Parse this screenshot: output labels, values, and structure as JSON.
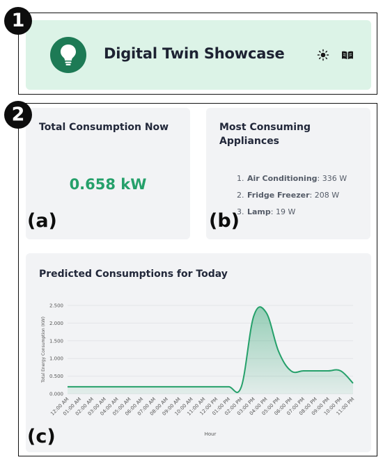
{
  "markers": {
    "header": "1",
    "content": "2"
  },
  "header": {
    "title": "Digital Twin Showcase",
    "logo_icon": "lightbulb-icon",
    "theme_icon": "sun-icon",
    "docs_icon": "book-icon"
  },
  "colors": {
    "accent": "#25a06a",
    "header_bg": "#dcf3e7",
    "logo_bg": "#1d7a55",
    "card_bg": "#f2f3f5"
  },
  "total_consumption": {
    "title": "Total Consumption Now",
    "value": "0.658 kW",
    "label": "(a)"
  },
  "appliances": {
    "title": "Most Consuming Appliances",
    "label": "(b)",
    "items": [
      {
        "num": "1.",
        "name": "Air Conditioning",
        "value": ": 336 W"
      },
      {
        "num": "2.",
        "name": "Fridge Freezer",
        "value": ": 208 W"
      },
      {
        "num": "3.",
        "name": "Lamp",
        "value": ": 19 W"
      }
    ]
  },
  "prediction": {
    "title": "Predicted Consumptions for Today",
    "label": "(c)"
  },
  "chart_data": {
    "type": "area",
    "xlabel": "Hour",
    "ylabel": "Total Energy Consumption (KW)",
    "ylim": [
      0,
      2.5
    ],
    "yticks": [
      "0.000",
      "0.500",
      "1.000",
      "1.500",
      "2.000",
      "2.500"
    ],
    "categories": [
      "12:00 AM",
      "01:00 AM",
      "02:00 AM",
      "03:00 AM",
      "04:00 AM",
      "05:00 AM",
      "06:00 AM",
      "07:00 AM",
      "08:00 AM",
      "09:00 AM",
      "10:00 AM",
      "11:00 AM",
      "12:00 PM",
      "01:00 PM",
      "02:00 PM",
      "03:00 PM",
      "04:00 PM",
      "05:00 PM",
      "06:00 PM",
      "07:00 PM",
      "08:00 PM",
      "09:00 PM",
      "10:00 PM",
      "11:00 PM"
    ],
    "series": [
      {
        "values": [
          0.2,
          0.2,
          0.2,
          0.2,
          0.2,
          0.2,
          0.2,
          0.2,
          0.2,
          0.2,
          0.2,
          0.2,
          0.2,
          0.2,
          0.2,
          2.2,
          2.3,
          1.2,
          0.65,
          0.65,
          0.65,
          0.65,
          0.65,
          0.3
        ]
      }
    ],
    "color": "#25a06a",
    "grid": true
  }
}
